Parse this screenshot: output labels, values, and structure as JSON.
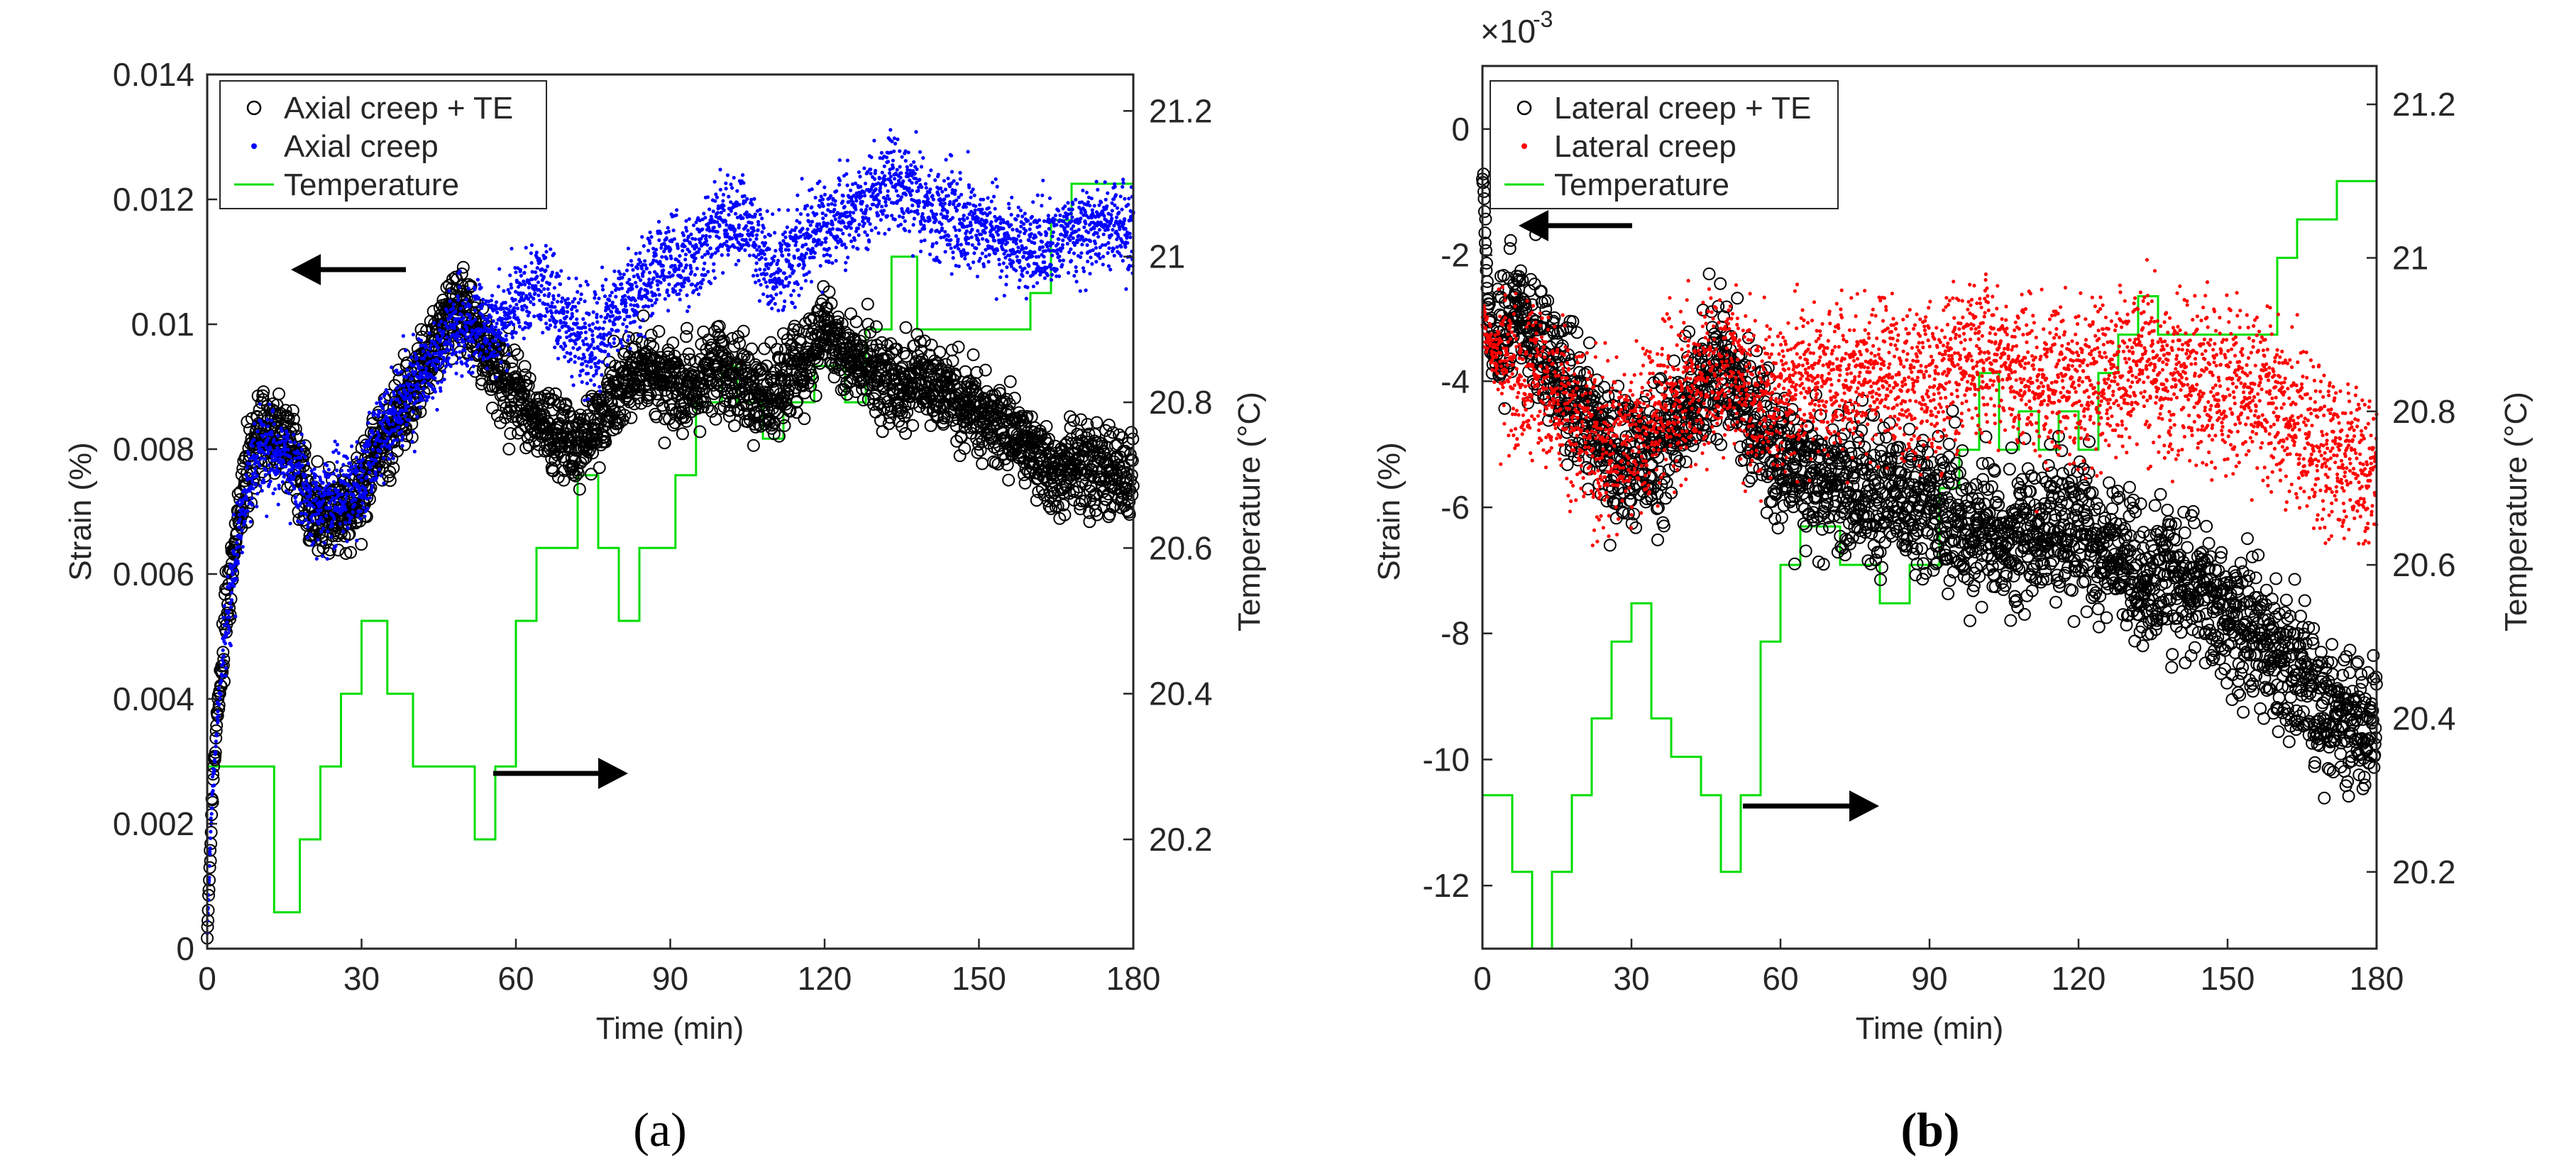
{
  "figure": {
    "panel_labels": [
      "(a)",
      "(b)"
    ]
  },
  "chart_data": [
    {
      "type": "scatter",
      "panel": "(a)",
      "xlabel": "Time (min)",
      "ylabel": "Strain (%)",
      "y2label": "Temperature (°C)",
      "xlim": [
        0,
        180
      ],
      "ylim": [
        0,
        0.014
      ],
      "y2lim": [
        20.05,
        21.25
      ],
      "xticks": [
        "0",
        "30",
        "60",
        "90",
        "120",
        "150",
        "180"
      ],
      "yticks": [
        "0",
        "0.002",
        "0.004",
        "0.006",
        "0.008",
        "0.01",
        "0.012",
        "0.014"
      ],
      "y2ticks": [
        "20.2",
        "20.4",
        "20.6",
        "20.8",
        "21",
        "21.2"
      ],
      "exponent_label": "",
      "legend_position": "top-left",
      "legend": [
        "Axial creep + TE",
        "Axial creep",
        "Temperature"
      ],
      "series": [
        {
          "name": "Axial creep + TE",
          "marker": "open-circle",
          "color": "#000000",
          "x": [
            0,
            1,
            2,
            4,
            6,
            8,
            10,
            12,
            15,
            18,
            20,
            22,
            25,
            28,
            30,
            33,
            36,
            40,
            45,
            48,
            50,
            53,
            56,
            60,
            65,
            70,
            75,
            80,
            85,
            90,
            95,
            100,
            105,
            110,
            115,
            120,
            125,
            130,
            135,
            140,
            145,
            150,
            155,
            160,
            165,
            170,
            175,
            180
          ],
          "values": [
            0.0002,
            0.0025,
            0.0038,
            0.0055,
            0.0068,
            0.0078,
            0.0082,
            0.0083,
            0.0082,
            0.0076,
            0.0071,
            0.0069,
            0.007,
            0.0071,
            0.0073,
            0.0079,
            0.0084,
            0.009,
            0.0099,
            0.0103,
            0.0101,
            0.0098,
            0.0093,
            0.0088,
            0.0085,
            0.008,
            0.0083,
            0.009,
            0.0093,
            0.009,
            0.009,
            0.0093,
            0.009,
            0.0088,
            0.0093,
            0.0099,
            0.0095,
            0.0092,
            0.009,
            0.0091,
            0.0088,
            0.0086,
            0.0084,
            0.008,
            0.0076,
            0.0077,
            0.0076,
            0.0075
          ]
        },
        {
          "name": "Axial creep",
          "marker": "dot",
          "color": "#0000ff",
          "x": [
            0,
            1,
            2,
            4,
            6,
            8,
            10,
            12,
            15,
            18,
            20,
            22,
            25,
            28,
            30,
            33,
            36,
            40,
            45,
            48,
            50,
            53,
            56,
            60,
            65,
            70,
            75,
            80,
            85,
            90,
            95,
            100,
            105,
            110,
            115,
            120,
            125,
            130,
            133,
            136,
            140,
            145,
            150,
            155,
            160,
            165,
            170,
            175,
            180
          ],
          "values": [
            0.0003,
            0.0025,
            0.0037,
            0.0053,
            0.0066,
            0.0075,
            0.0079,
            0.0079,
            0.0078,
            0.0075,
            0.0072,
            0.0071,
            0.0072,
            0.0073,
            0.0075,
            0.0081,
            0.0085,
            0.0089,
            0.0095,
            0.0099,
            0.0099,
            0.01,
            0.0099,
            0.0103,
            0.0107,
            0.01,
            0.0096,
            0.0102,
            0.0107,
            0.011,
            0.0111,
            0.0117,
            0.0116,
            0.0108,
            0.0112,
            0.0115,
            0.0118,
            0.0121,
            0.0124,
            0.0121,
            0.0119,
            0.0117,
            0.0115,
            0.0114,
            0.0111,
            0.0114,
            0.0115,
            0.0116,
            0.0115
          ]
        },
        {
          "name": "Temperature",
          "marker": "step-line",
          "color": "#00dd00",
          "x": [
            0,
            5,
            13,
            18,
            22,
            26,
            30,
            35,
            40,
            45,
            52,
            56,
            60,
            64,
            72,
            76,
            78,
            80,
            84,
            91,
            95,
            100,
            103,
            108,
            112,
            118,
            124,
            128,
            133,
            138,
            144,
            150,
            156,
            160,
            164,
            168,
            172,
            176,
            180
          ],
          "values": [
            20.3,
            20.3,
            20.1,
            20.2,
            20.3,
            20.4,
            20.5,
            20.4,
            20.3,
            20.3,
            20.2,
            20.3,
            20.5,
            20.6,
            20.7,
            20.6,
            20.6,
            20.5,
            20.6,
            20.7,
            20.8,
            20.85,
            20.8,
            20.75,
            20.8,
            20.85,
            20.8,
            20.9,
            21.0,
            20.9,
            20.9,
            20.9,
            20.9,
            20.95,
            21.05,
            21.1,
            21.1,
            21.1,
            21.2
          ]
        }
      ]
    },
    {
      "type": "scatter",
      "panel": "(b)",
      "xlabel": "Time (min)",
      "ylabel": "Strain (%)",
      "y2label": "Temperature (°C)",
      "xlim": [
        0,
        180
      ],
      "ylim": [
        -13,
        1
      ],
      "y2lim": [
        20.1,
        21.25
      ],
      "xticks": [
        "0",
        "30",
        "60",
        "90",
        "120",
        "150",
        "180"
      ],
      "yticks": [
        "-12",
        "-10",
        "-8",
        "-6",
        "-4",
        "-2",
        "0"
      ],
      "y2ticks": [
        "20.2",
        "20.4",
        "20.6",
        "20.8",
        "21",
        "21.2"
      ],
      "exponent_label": "×10",
      "exponent_power": "-3",
      "legend_position": "top-left",
      "legend": [
        "Lateral creep + TE",
        "Lateral creep",
        "Temperature"
      ],
      "series": [
        {
          "name": "Lateral creep + TE",
          "marker": "open-circle",
          "color": "#000000",
          "x": [
            0,
            1,
            2,
            4,
            6,
            8,
            10,
            13,
            16,
            20,
            24,
            28,
            32,
            36,
            40,
            44,
            48,
            52,
            56,
            60,
            65,
            70,
            75,
            80,
            85,
            90,
            95,
            100,
            105,
            110,
            115,
            120,
            125,
            130,
            135,
            140,
            145,
            150,
            155,
            160,
            165,
            170,
            175,
            180
          ],
          "values": [
            -0.5,
            -2.5,
            -3.5,
            -3.2,
            -3.0,
            -3.0,
            -3.2,
            -3.6,
            -4.0,
            -4.4,
            -5.0,
            -5.3,
            -5.2,
            -5.0,
            -4.6,
            -4.2,
            -3.7,
            -4.2,
            -4.8,
            -5.2,
            -5.4,
            -5.6,
            -5.8,
            -5.8,
            -5.9,
            -6.0,
            -6.2,
            -6.4,
            -6.6,
            -6.4,
            -6.3,
            -6.3,
            -6.7,
            -6.9,
            -7.2,
            -7.0,
            -7.3,
            -7.6,
            -8.0,
            -8.4,
            -8.8,
            -9.2,
            -9.4,
            -9.5
          ]
        },
        {
          "name": "Lateral creep",
          "marker": "dot",
          "color": "#ff0000",
          "x": [
            0,
            2,
            4,
            6,
            8,
            10,
            13,
            16,
            20,
            24,
            28,
            32,
            36,
            40,
            44,
            48,
            52,
            56,
            60,
            65,
            70,
            75,
            80,
            85,
            90,
            95,
            100,
            105,
            110,
            115,
            120,
            125,
            130,
            135,
            140,
            145,
            150,
            155,
            160,
            165,
            170,
            175,
            180
          ],
          "values": [
            -3.0,
            -3.5,
            -3.7,
            -3.8,
            -3.9,
            -4.0,
            -4.1,
            -4.4,
            -4.8,
            -5.1,
            -5.2,
            -4.8,
            -4.5,
            -4.2,
            -4.0,
            -3.8,
            -4.1,
            -4.3,
            -4.2,
            -4.0,
            -3.9,
            -3.9,
            -4.0,
            -4.0,
            -4.0,
            -3.8,
            -3.6,
            -3.8,
            -4.0,
            -4.1,
            -4.1,
            -3.9,
            -3.7,
            -3.6,
            -3.9,
            -4.0,
            -4.1,
            -4.3,
            -4.5,
            -4.8,
            -5.1,
            -5.3,
            -5.4
          ]
        },
        {
          "name": "Temperature",
          "marker": "step-line",
          "color": "#00dd00",
          "x": [
            0,
            6,
            10,
            14,
            18,
            22,
            26,
            30,
            34,
            38,
            44,
            48,
            52,
            56,
            60,
            64,
            72,
            76,
            80,
            86,
            92,
            96,
            100,
            104,
            108,
            112,
            116,
            120,
            124,
            128,
            132,
            136,
            140,
            145,
            150,
            156,
            160,
            164,
            168,
            172,
            176,
            180
          ],
          "values": [
            20.3,
            20.2,
            20.1,
            20.2,
            20.3,
            20.4,
            20.5,
            20.55,
            20.4,
            20.35,
            20.3,
            20.2,
            20.3,
            20.5,
            20.6,
            20.65,
            20.6,
            20.6,
            20.55,
            20.6,
            20.7,
            20.75,
            20.85,
            20.75,
            20.8,
            20.75,
            20.8,
            20.75,
            20.85,
            20.9,
            20.95,
            20.9,
            20.9,
            20.9,
            20.9,
            20.9,
            21.0,
            21.05,
            21.05,
            21.1,
            21.1,
            21.2
          ]
        }
      ]
    }
  ]
}
